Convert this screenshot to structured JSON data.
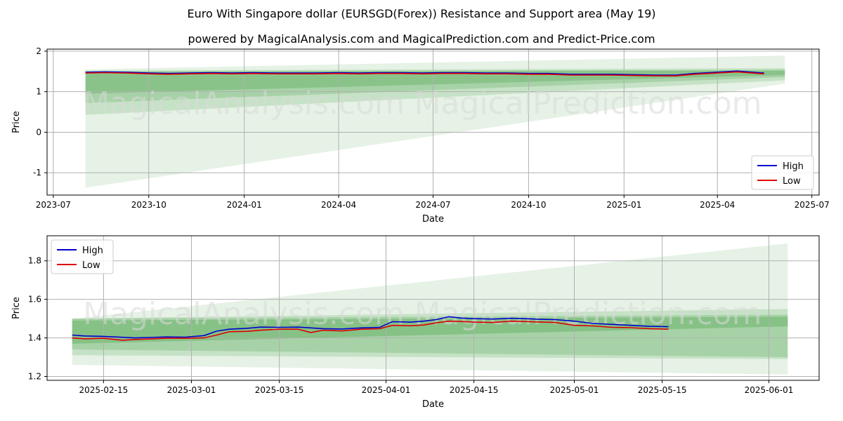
{
  "title": "Euro With Singapore dollar (EURSGD(Forex)) Resistance and Support area (May 19)",
  "subtitle": "powered by MagicalAnalysis.com and MagicalPrediction.com and Predict-Price.com",
  "watermarks": [
    "MagicalAnalysis.com",
    "MagicalPrediction.com"
  ],
  "colors": {
    "high": "#0000cc",
    "low": "#dd0000",
    "band": "#3a9a3a",
    "grid": "#b0b0b0"
  },
  "chart_data": [
    {
      "type": "line",
      "xlabel": "Date",
      "ylabel": "Price",
      "xlim": [
        "2023-06-25",
        "2025-07-08"
      ],
      "ylim": [
        -1.55,
        2.05
      ],
      "x_ticks": [
        "2023-07",
        "2023-10",
        "2024-01",
        "2024-04",
        "2024-07",
        "2024-10",
        "2025-01",
        "2025-04",
        "2025-07"
      ],
      "y_ticks": [
        "-1",
        "0",
        "1",
        "2"
      ],
      "y_tick_values": [
        -1,
        0,
        1,
        2
      ],
      "grid": true,
      "legend": {
        "position": "lower-right",
        "entries": [
          "High",
          "Low"
        ]
      },
      "bands": [
        {
          "x": [
            "2023-08-01",
            "2025-06-05"
          ],
          "upper": [
            1.55,
            1.89
          ],
          "lower": [
            -1.37,
            1.2
          ],
          "opacity": 0.13
        },
        {
          "x": [
            "2023-08-01",
            "2025-06-05"
          ],
          "upper": [
            1.52,
            1.58
          ],
          "lower": [
            0.43,
            1.28
          ],
          "opacity": 0.18
        },
        {
          "x": [
            "2023-08-01",
            "2025-06-05"
          ],
          "upper": [
            1.5,
            1.54
          ],
          "lower": [
            0.72,
            1.36
          ],
          "opacity": 0.22
        },
        {
          "x": [
            "2023-08-01",
            "2025-06-05"
          ],
          "upper": [
            1.49,
            1.52
          ],
          "lower": [
            0.95,
            1.41
          ],
          "opacity": 0.26
        }
      ],
      "series": [
        {
          "name": "High",
          "x": [
            "2023-08-01",
            "2023-08-20",
            "2023-09-10",
            "2023-10-01",
            "2023-10-20",
            "2023-11-10",
            "2023-12-01",
            "2023-12-20",
            "2024-01-10",
            "2024-02-01",
            "2024-02-20",
            "2024-03-10",
            "2024-04-01",
            "2024-04-20",
            "2024-05-10",
            "2024-06-01",
            "2024-06-20",
            "2024-07-10",
            "2024-08-01",
            "2024-08-20",
            "2024-09-10",
            "2024-10-01",
            "2024-10-20",
            "2024-11-10",
            "2024-12-01",
            "2024-12-20",
            "2025-01-10",
            "2025-02-01",
            "2025-02-20",
            "2025-03-10",
            "2025-04-01",
            "2025-04-20",
            "2025-05-10",
            "2025-05-16"
          ],
          "values": [
            1.48,
            1.49,
            1.48,
            1.46,
            1.45,
            1.46,
            1.47,
            1.46,
            1.47,
            1.46,
            1.46,
            1.46,
            1.47,
            1.46,
            1.47,
            1.47,
            1.46,
            1.47,
            1.47,
            1.46,
            1.46,
            1.45,
            1.45,
            1.43,
            1.43,
            1.43,
            1.42,
            1.41,
            1.41,
            1.45,
            1.48,
            1.51,
            1.47,
            1.46
          ]
        },
        {
          "name": "Low",
          "x": [
            "2023-08-01",
            "2023-08-20",
            "2023-09-10",
            "2023-10-01",
            "2023-10-20",
            "2023-11-10",
            "2023-12-01",
            "2023-12-20",
            "2024-01-10",
            "2024-02-01",
            "2024-02-20",
            "2024-03-10",
            "2024-04-01",
            "2024-04-20",
            "2024-05-10",
            "2024-06-01",
            "2024-06-20",
            "2024-07-10",
            "2024-08-01",
            "2024-08-20",
            "2024-09-10",
            "2024-10-01",
            "2024-10-20",
            "2024-11-10",
            "2024-12-01",
            "2024-12-20",
            "2025-01-10",
            "2025-02-01",
            "2025-02-20",
            "2025-03-10",
            "2025-04-01",
            "2025-04-20",
            "2025-05-10",
            "2025-05-16"
          ],
          "values": [
            1.46,
            1.47,
            1.46,
            1.44,
            1.43,
            1.44,
            1.45,
            1.44,
            1.45,
            1.44,
            1.44,
            1.44,
            1.45,
            1.44,
            1.45,
            1.45,
            1.44,
            1.45,
            1.45,
            1.44,
            1.44,
            1.43,
            1.43,
            1.41,
            1.41,
            1.41,
            1.4,
            1.39,
            1.39,
            1.43,
            1.46,
            1.49,
            1.45,
            1.44
          ]
        }
      ]
    },
    {
      "type": "line",
      "xlabel": "Date",
      "ylabel": "Price",
      "xlim": [
        "2025-02-06",
        "2025-06-09"
      ],
      "ylim": [
        1.18,
        1.93
      ],
      "x_ticks": [
        "2025-02-15",
        "2025-03-01",
        "2025-03-15",
        "2025-04-01",
        "2025-04-15",
        "2025-05-01",
        "2025-05-15",
        "2025-06-01"
      ],
      "y_ticks": [
        "1.2",
        "1.4",
        "1.6",
        "1.8"
      ],
      "y_tick_values": [
        1.2,
        1.4,
        1.6,
        1.8
      ],
      "grid": true,
      "legend": {
        "position": "upper-left",
        "entries": [
          "High",
          "Low"
        ]
      },
      "bands": [
        {
          "x": [
            "2025-02-10",
            "2025-06-04"
          ],
          "upper": [
            1.5,
            1.89
          ],
          "lower": [
            1.26,
            1.21
          ],
          "opacity": 0.13
        },
        {
          "x": [
            "2025-02-10",
            "2025-06-04"
          ],
          "upper": [
            1.5,
            1.55
          ],
          "lower": [
            1.31,
            1.29
          ],
          "opacity": 0.18
        },
        {
          "x": [
            "2025-02-10",
            "2025-06-04"
          ],
          "upper": [
            1.5,
            1.52
          ],
          "lower": [
            1.34,
            1.3
          ],
          "opacity": 0.22
        },
        {
          "x": [
            "2025-02-10",
            "2025-06-04"
          ],
          "upper": [
            1.49,
            1.51
          ],
          "lower": [
            1.37,
            1.46
          ],
          "opacity": 0.3
        }
      ],
      "series": [
        {
          "name": "High",
          "x": [
            "2025-02-10",
            "2025-02-12",
            "2025-02-15",
            "2025-02-18",
            "2025-02-20",
            "2025-02-22",
            "2025-02-25",
            "2025-02-28",
            "2025-03-03",
            "2025-03-05",
            "2025-03-07",
            "2025-03-10",
            "2025-03-12",
            "2025-03-15",
            "2025-03-18",
            "2025-03-20",
            "2025-03-22",
            "2025-03-25",
            "2025-03-28",
            "2025-03-31",
            "2025-04-02",
            "2025-04-05",
            "2025-04-07",
            "2025-04-09",
            "2025-04-11",
            "2025-04-13",
            "2025-04-15",
            "2025-04-18",
            "2025-04-21",
            "2025-04-23",
            "2025-04-25",
            "2025-04-28",
            "2025-05-01",
            "2025-05-04",
            "2025-05-07",
            "2025-05-10",
            "2025-05-13",
            "2025-05-16"
          ],
          "values": [
            1.415,
            1.41,
            1.408,
            1.403,
            1.4,
            1.402,
            1.405,
            1.404,
            1.412,
            1.435,
            1.445,
            1.45,
            1.456,
            1.455,
            1.456,
            1.452,
            1.448,
            1.446,
            1.452,
            1.455,
            1.484,
            1.482,
            1.487,
            1.495,
            1.51,
            1.503,
            1.5,
            1.498,
            1.502,
            1.5,
            1.497,
            1.495,
            1.487,
            1.475,
            1.47,
            1.465,
            1.46,
            1.458
          ]
        },
        {
          "name": "Low",
          "x": [
            "2025-02-10",
            "2025-02-12",
            "2025-02-15",
            "2025-02-18",
            "2025-02-20",
            "2025-02-22",
            "2025-02-25",
            "2025-02-28",
            "2025-03-03",
            "2025-03-05",
            "2025-03-07",
            "2025-03-10",
            "2025-03-12",
            "2025-03-15",
            "2025-03-18",
            "2025-03-20",
            "2025-03-22",
            "2025-03-25",
            "2025-03-28",
            "2025-03-31",
            "2025-04-02",
            "2025-04-05",
            "2025-04-07",
            "2025-04-09",
            "2025-04-11",
            "2025-04-13",
            "2025-04-15",
            "2025-04-18",
            "2025-04-21",
            "2025-04-23",
            "2025-04-25",
            "2025-04-28",
            "2025-05-01",
            "2025-05-04",
            "2025-05-07",
            "2025-05-10",
            "2025-05-13",
            "2025-05-16"
          ],
          "values": [
            1.4,
            1.395,
            1.398,
            1.388,
            1.392,
            1.394,
            1.398,
            1.398,
            1.4,
            1.415,
            1.432,
            1.434,
            1.44,
            1.445,
            1.445,
            1.428,
            1.44,
            1.436,
            1.445,
            1.448,
            1.465,
            1.463,
            1.467,
            1.478,
            1.487,
            1.485,
            1.482,
            1.48,
            1.487,
            1.485,
            1.483,
            1.48,
            1.465,
            1.462,
            1.455,
            1.453,
            1.448,
            1.445
          ]
        }
      ]
    }
  ]
}
